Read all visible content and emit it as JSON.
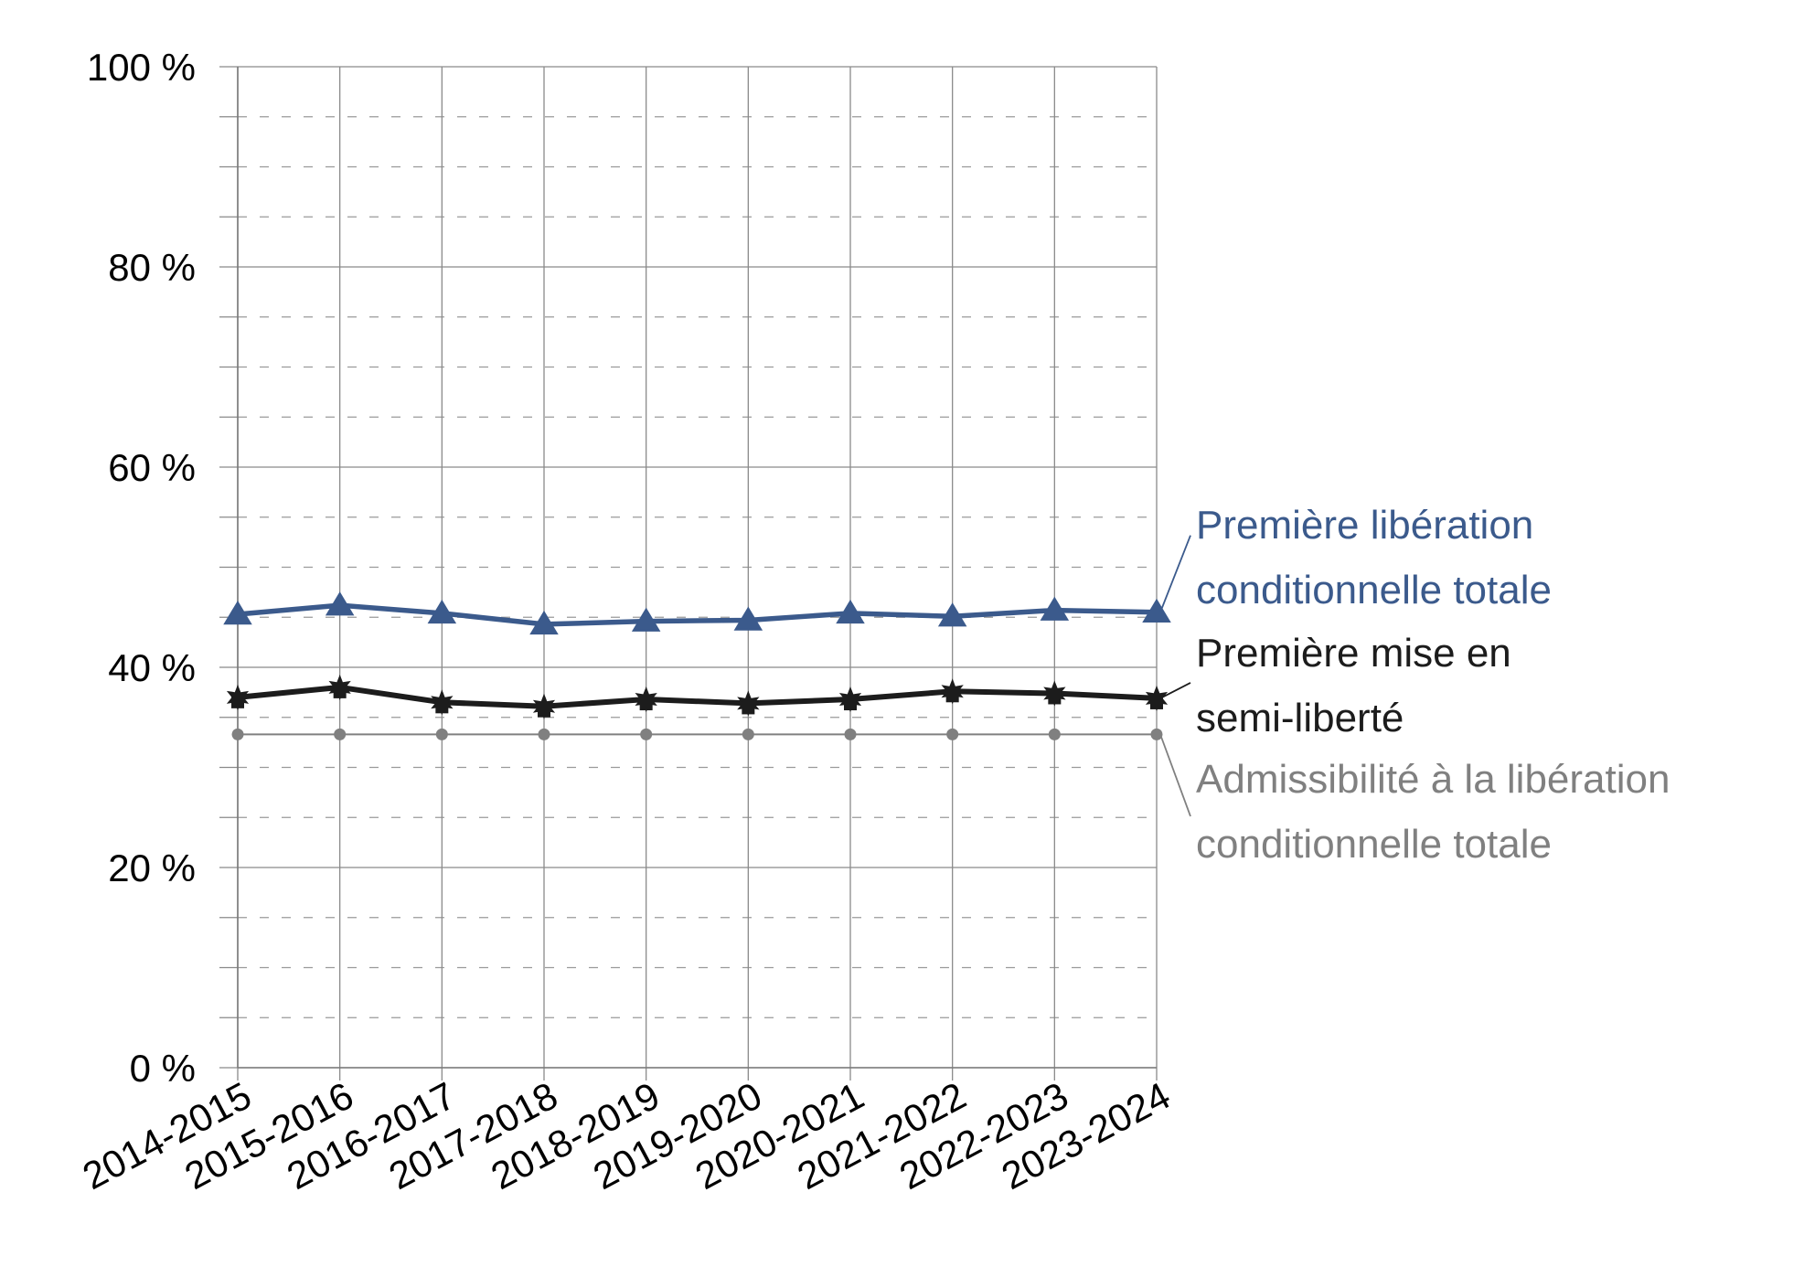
{
  "chart_data": {
    "type": "line",
    "categories": [
      "2014-2015",
      "2015-2016",
      "2016-2017",
      "2017-2018",
      "2018-2019",
      "2019-2020",
      "2020-2021",
      "2021-2022",
      "2022-2023",
      "2023-2024"
    ],
    "ylim": [
      0,
      100
    ],
    "y_ticks": [
      0,
      20,
      40,
      60,
      80,
      100
    ],
    "y_tick_labels": [
      "0 %",
      "20 %",
      "40 %",
      "60 %",
      "80 %",
      "100 %"
    ],
    "grid": "major solid, minor dashed",
    "legend": "direct labels at right",
    "series": [
      {
        "name": "Première libération conditionnelle totale",
        "label_lines": [
          "Première libération",
          "conditionnelle totale"
        ],
        "color": "#3b5a8c",
        "marker": "triangle",
        "values": [
          45.3,
          46.2,
          45.4,
          44.3,
          44.6,
          44.7,
          45.4,
          45.1,
          45.7,
          45.5
        ]
      },
      {
        "name": "Première mise en semi-liberté",
        "label_lines": [
          "Première mise en",
          "semi-liberté"
        ],
        "color": "#1c1c1c",
        "marker": "star",
        "values": [
          37.0,
          38.0,
          36.5,
          36.1,
          36.8,
          36.4,
          36.8,
          37.6,
          37.4,
          36.9
        ]
      },
      {
        "name": "Admissibilité à la libération conditionnelle totale",
        "label_lines": [
          "Admissibilité à la libération",
          "conditionnelle totale"
        ],
        "color": "#808080",
        "marker": "circle",
        "values": [
          33.3,
          33.3,
          33.3,
          33.3,
          33.3,
          33.3,
          33.3,
          33.3,
          33.3,
          33.3
        ]
      }
    ]
  }
}
